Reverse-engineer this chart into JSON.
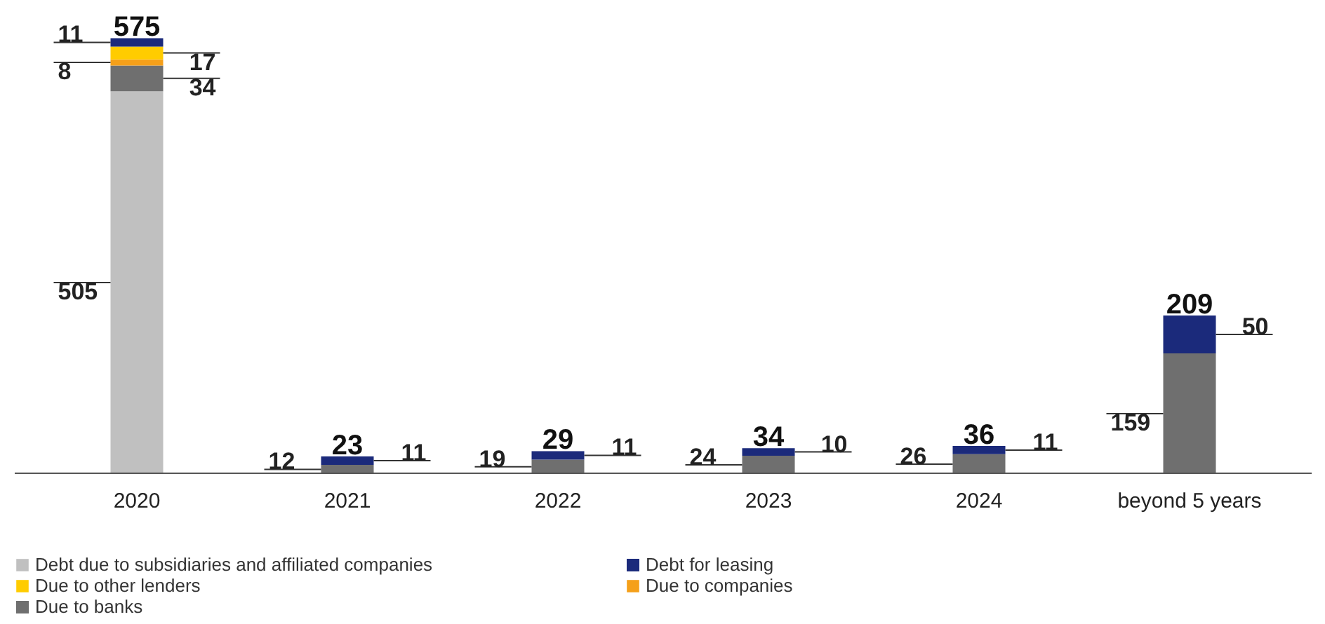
{
  "chart_data": {
    "type": "bar",
    "stacked": true,
    "categories": [
      "2020",
      "2021",
      "2022",
      "2023",
      "2024",
      "beyond 5 years"
    ],
    "series": [
      {
        "name": "Debt due to subsidiaries and affiliated companies",
        "color": "#c0c0c0",
        "values": [
          505,
          null,
          null,
          null,
          null,
          null
        ]
      },
      {
        "name": "Due to banks",
        "color": "#6f6f6f",
        "values": [
          34,
          12,
          19,
          24,
          26,
          159
        ]
      },
      {
        "name": "Due to companies",
        "color": "#f5a01a",
        "values": [
          8,
          null,
          null,
          null,
          null,
          null
        ]
      },
      {
        "name": "Due to other lenders",
        "color": "#ffcc00",
        "values": [
          17,
          null,
          null,
          null,
          null,
          null
        ]
      },
      {
        "name": "Debt for leasing",
        "color": "#1b2a7b",
        "values": [
          11,
          11,
          11,
          10,
          11,
          50
        ]
      }
    ],
    "data_labels": true,
    "totals": [
      "575",
      "23",
      "29",
      "34",
      "36",
      "209"
    ],
    "legend": "bottom"
  }
}
